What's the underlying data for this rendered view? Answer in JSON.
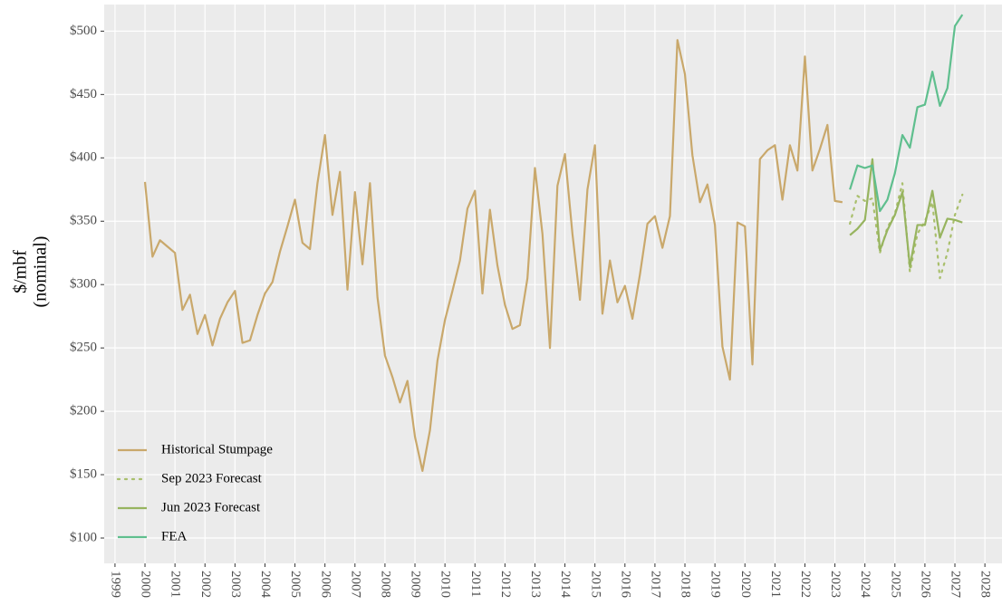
{
  "chart_data": {
    "type": "line",
    "y_label": [
      "$/mbf",
      "(nominal)"
    ],
    "xlim": [
      1998.64,
      2028.57
    ],
    "ylim": [
      80,
      521
    ],
    "xticks": [
      1999,
      2000,
      2001,
      2002,
      2003,
      2004,
      2005,
      2006,
      2007,
      2008,
      2009,
      2010,
      2011,
      2012,
      2013,
      2014,
      2015,
      2016,
      2017,
      2018,
      2019,
      2020,
      2021,
      2022,
      2023,
      2024,
      2025,
      2026,
      2027,
      2028
    ],
    "yticks": [
      {
        "value": 100,
        "label": "$100"
      },
      {
        "value": 150,
        "label": "$150"
      },
      {
        "value": 200,
        "label": "$200"
      },
      {
        "value": 250,
        "label": "$250"
      },
      {
        "value": 300,
        "label": "$300"
      },
      {
        "value": 350,
        "label": "$350"
      },
      {
        "value": 400,
        "label": "$400"
      },
      {
        "value": 450,
        "label": "$450"
      },
      {
        "value": 500,
        "label": "$500"
      }
    ],
    "grid": true,
    "legend": "bottom-left",
    "series": [
      {
        "name": "Historical Stumpage",
        "color": "#c9a86b",
        "dash": "solid",
        "x": [
          2000,
          2000.25,
          2000.5,
          2000.75,
          2001,
          2001.25,
          2001.5,
          2001.75,
          2002,
          2002.25,
          2002.5,
          2002.75,
          2003,
          2003.25,
          2003.5,
          2003.75,
          2004,
          2004.25,
          2004.5,
          2004.75,
          2005,
          2005.25,
          2005.5,
          2005.75,
          2006,
          2006.25,
          2006.5,
          2006.75,
          2007,
          2007.25,
          2007.5,
          2007.75,
          2008,
          2008.25,
          2008.5,
          2008.75,
          2009,
          2009.25,
          2009.5,
          2009.75,
          2010,
          2010.25,
          2010.5,
          2010.75,
          2011,
          2011.25,
          2011.5,
          2011.75,
          2012,
          2012.25,
          2012.5,
          2012.75,
          2013,
          2013.25,
          2013.5,
          2013.75,
          2014,
          2014.25,
          2014.5,
          2014.75,
          2015,
          2015.25,
          2015.5,
          2015.75,
          2016,
          2016.25,
          2016.5,
          2016.75,
          2017,
          2017.25,
          2017.5,
          2017.75,
          2018,
          2018.25,
          2018.5,
          2018.75,
          2019,
          2019.25,
          2019.5,
          2019.75,
          2020,
          2020.25,
          2020.5,
          2020.75,
          2021,
          2021.25,
          2021.5,
          2021.75,
          2022,
          2022.25,
          2022.5,
          2022.75,
          2023,
          2023.25
        ],
        "values": [
          381,
          322,
          335,
          330,
          325,
          280,
          292,
          261,
          276,
          252,
          273,
          286,
          295,
          254,
          256,
          276,
          293,
          302,
          326,
          346,
          367,
          333,
          328,
          380,
          418,
          355,
          389,
          296,
          373,
          316,
          380,
          290,
          244,
          227,
          207,
          224,
          180,
          153,
          185,
          240,
          272,
          295,
          319,
          360,
          374,
          293,
          359,
          315,
          284,
          265,
          268,
          305,
          392,
          340,
          250,
          378,
          403,
          340,
          288,
          375,
          410,
          277,
          319,
          286,
          299,
          273,
          308,
          348,
          354,
          329,
          354,
          493,
          466,
          402,
          365,
          379,
          347,
          251,
          225,
          349,
          346,
          237,
          399,
          406,
          410,
          367,
          410,
          390,
          480,
          390,
          407,
          426,
          366,
          365
        ]
      },
      {
        "name": "Sep 2023 Forecast",
        "color": "#a9bf6c",
        "dash": "dotted",
        "x": [
          2023.5,
          2023.75,
          2024,
          2024.25,
          2024.5,
          2024.75,
          2025,
          2025.25,
          2025.5,
          2025.75,
          2026,
          2026.25,
          2026.5,
          2026.75,
          2027,
          2027.25
        ],
        "values": [
          348,
          370,
          366,
          368,
          325,
          345,
          356,
          380,
          310,
          340,
          350,
          365,
          305,
          325,
          355,
          371
        ]
      },
      {
        "name": "Jun 2023 Forecast",
        "color": "#97b45f",
        "dash": "solid",
        "x": [
          2023.5,
          2023.75,
          2024,
          2024.25,
          2024.5,
          2024.75,
          2025,
          2025.25,
          2025.5,
          2025.75,
          2026,
          2026.25,
          2026.5,
          2026.75,
          2027,
          2027.25
        ],
        "values": [
          339,
          344,
          351,
          399,
          327,
          343,
          355,
          373,
          314,
          347,
          347,
          374,
          337,
          352,
          351,
          349
        ]
      },
      {
        "name": "FEA",
        "color": "#5fbf8e",
        "dash": "solid",
        "x": [
          2023.5,
          2023.75,
          2024,
          2024.25,
          2024.5,
          2024.75,
          2025,
          2025.25,
          2025.5,
          2025.75,
          2026,
          2026.25,
          2026.5,
          2026.75,
          2027,
          2027.25
        ],
        "values": [
          375,
          394,
          392,
          394,
          358,
          367,
          388,
          418,
          408,
          440,
          442,
          468,
          441,
          455,
          504,
          513
        ]
      }
    ]
  }
}
